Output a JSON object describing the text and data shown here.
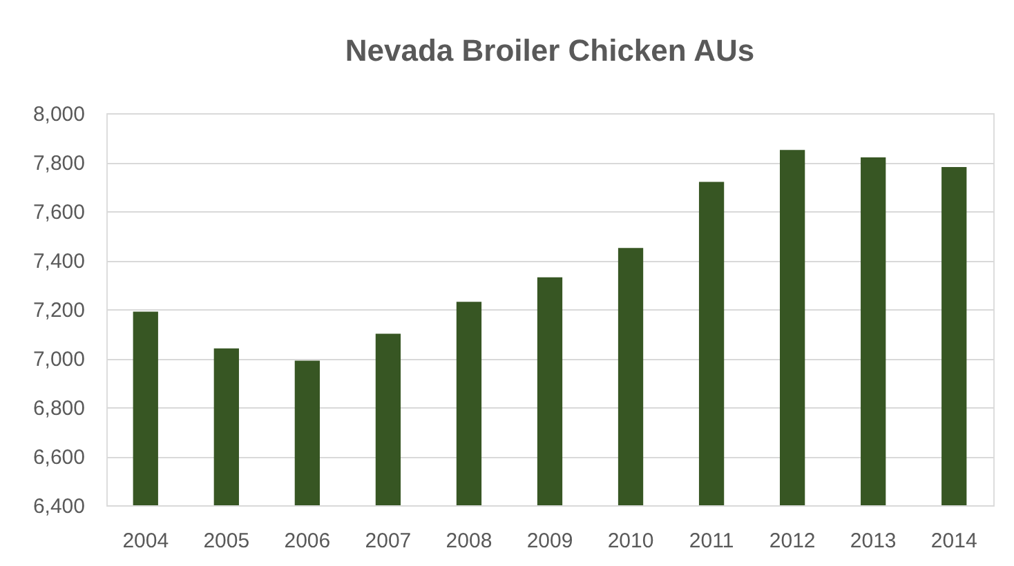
{
  "chart_data": {
    "type": "bar",
    "title": "Nevada Broiler Chicken AUs",
    "categories": [
      "2004",
      "2005",
      "2006",
      "2007",
      "2008",
      "2009",
      "2010",
      "2011",
      "2012",
      "2013",
      "2014"
    ],
    "values": [
      7190,
      7040,
      6990,
      7100,
      7230,
      7330,
      7450,
      7720,
      7850,
      7820,
      7780
    ],
    "color": "#375623",
    "ylim": [
      6400,
      8000
    ],
    "yticks": [
      {
        "value": 6400,
        "label": "6,400"
      },
      {
        "value": 6600,
        "label": "6,600"
      },
      {
        "value": 6800,
        "label": "6,800"
      },
      {
        "value": 7000,
        "label": "7,000"
      },
      {
        "value": 7200,
        "label": "7,200"
      },
      {
        "value": 7400,
        "label": "7,400"
      },
      {
        "value": 7600,
        "label": "7,600"
      },
      {
        "value": 7800,
        "label": "7,800"
      },
      {
        "value": 8000,
        "label": "8,000"
      }
    ],
    "grid": "y"
  }
}
